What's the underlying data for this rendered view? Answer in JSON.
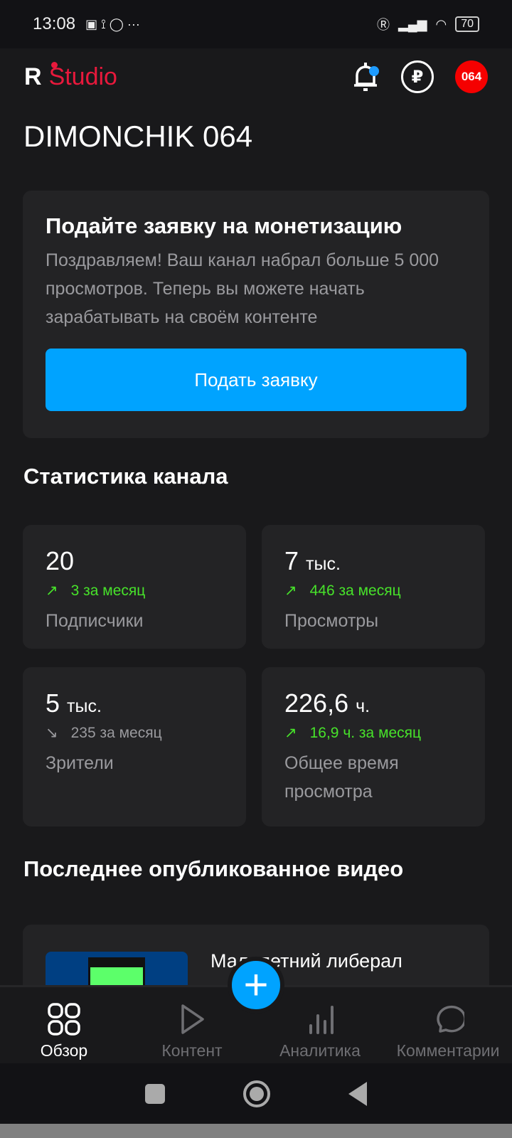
{
  "status_bar": {
    "time": "13:08",
    "battery": "70"
  },
  "header": {
    "logo_r": "R",
    "logo_studio": "Studio",
    "avatar_text": "064",
    "ruble": "₽"
  },
  "channel_name": "DIMONCHIK 064",
  "promo": {
    "title": "Подайте заявку на монетизацию",
    "text": "Поздравляем! Ваш канал набрал больше 5 000 просмотров. Теперь вы можете начать зарабатывать на своём контенте",
    "button": "Подать заявку"
  },
  "stats": {
    "title": "Статистика канала",
    "items": [
      {
        "value": "20",
        "unit": "",
        "delta": "3 за месяц",
        "trend": "up",
        "label": "Подписчики"
      },
      {
        "value": "7",
        "unit": "тыс.",
        "delta": "446 за месяц",
        "trend": "up",
        "label": "Просмотры"
      },
      {
        "value": "5",
        "unit": "тыс.",
        "delta": "235 за месяц",
        "trend": "down",
        "label": "Зрители"
      },
      {
        "value": "226,6",
        "unit": "ч.",
        "delta": "16,9 ч. за месяц",
        "trend": "up",
        "label": "Общее время просмотра"
      }
    ]
  },
  "latest": {
    "title": "Последнее опубликованное видео",
    "video_title": "Малолетний либерал"
  },
  "nav": [
    {
      "label": "Обзор",
      "icon": "grid-icon",
      "active": true
    },
    {
      "label": "Контент",
      "icon": "play-icon"
    },
    {
      "label": "Аналитика",
      "icon": "bar-chart-icon"
    },
    {
      "label": "Комментарии",
      "icon": "comment-icon"
    }
  ],
  "colors": {
    "accent": "#00a3ff",
    "brand": "#e8193c",
    "up": "#47e22a"
  }
}
